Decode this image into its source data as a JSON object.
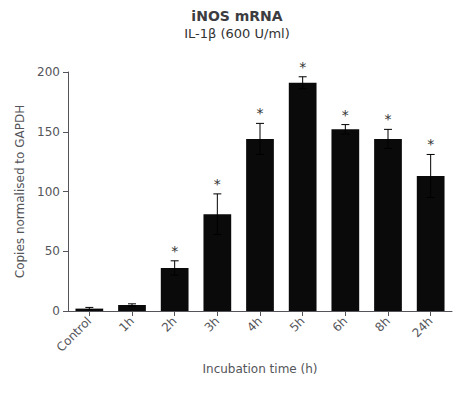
{
  "chart_data": {
    "type": "bar",
    "title": "iNOS mRNA",
    "subtitle": "IL-1β (600 U/ml)",
    "xlabel": "Incubation time (h)",
    "ylabel": "Copies normalised to GAPDH",
    "categories": [
      "Control",
      "1h",
      "2h",
      "3h",
      "4h",
      "5h",
      "6h",
      "8h",
      "24h"
    ],
    "values": [
      2,
      5,
      36,
      81,
      144,
      191,
      152,
      144,
      113
    ],
    "errors": [
      1,
      1,
      6,
      17,
      13,
      5,
      4,
      8,
      18
    ],
    "color": "#0a0a0a",
    "annotations": [
      {
        "x": "2h",
        "text": "*"
      },
      {
        "x": "3h",
        "text": "*"
      },
      {
        "x": "4h",
        "text": "*"
      },
      {
        "x": "5h",
        "text": "*"
      },
      {
        "x": "6h",
        "text": "*"
      },
      {
        "x": "8h",
        "text": "*"
      },
      {
        "x": "24h",
        "text": "*"
      }
    ],
    "ylim": [
      0,
      200
    ],
    "yticks": [
      0,
      50,
      100,
      150,
      200
    ],
    "grid": false
  }
}
